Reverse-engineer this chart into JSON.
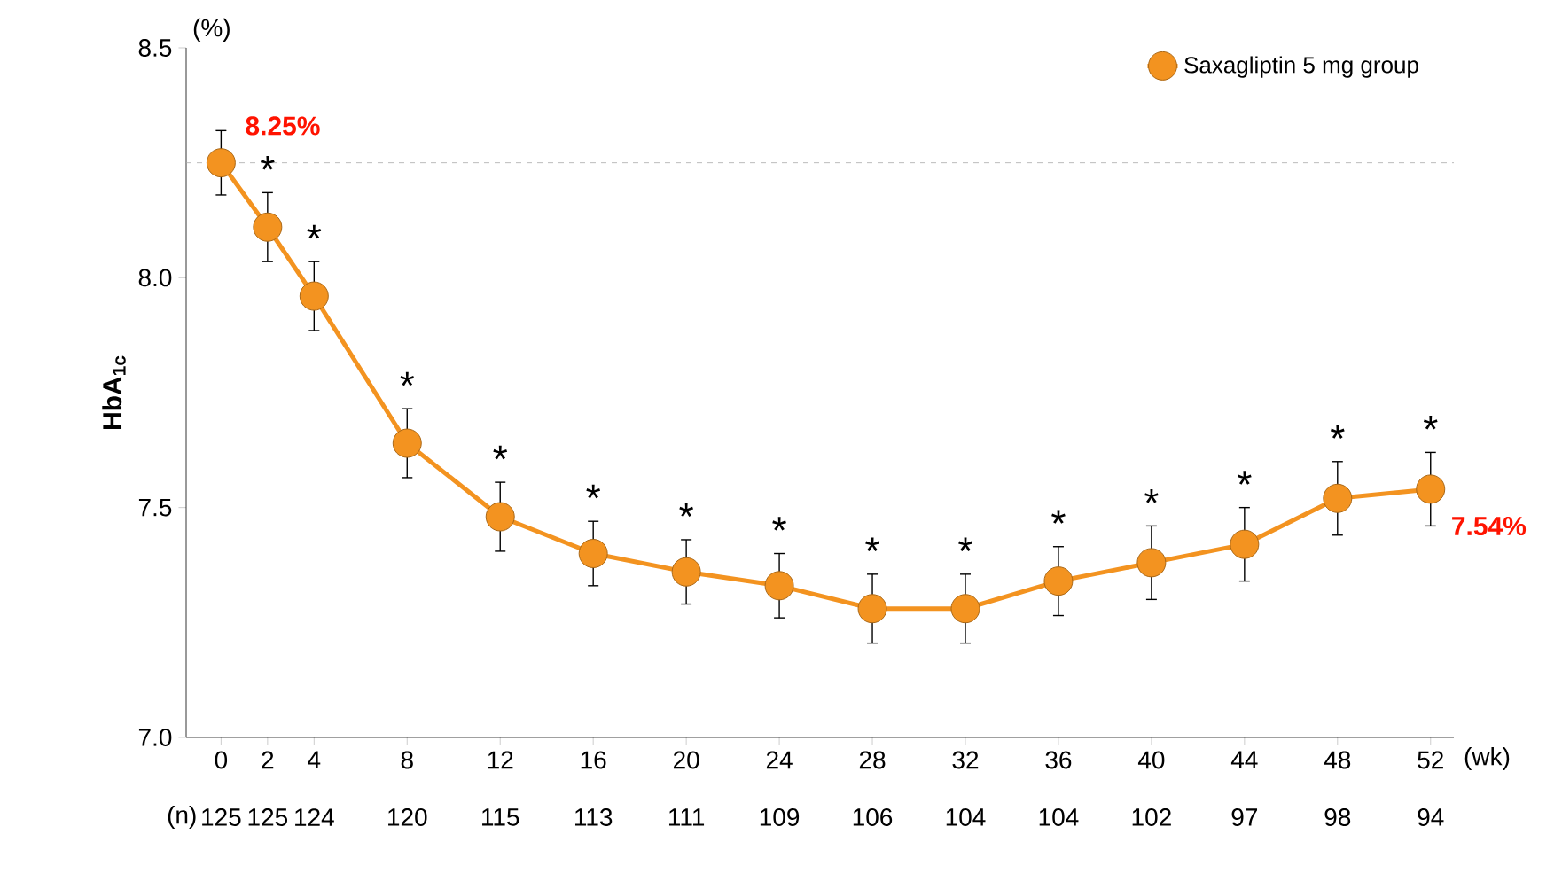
{
  "chart_data": {
    "type": "line",
    "ylabel": "HbA$_{1c}$",
    "xlabel": "(wk)",
    "x": [
      0,
      2,
      4,
      8,
      12,
      16,
      20,
      24,
      28,
      32,
      36,
      40,
      44,
      48,
      52
    ],
    "series": [
      {
        "name": "Saxagliptin 5 mg group",
        "color": "#f39320",
        "values": [
          8.25,
          8.11,
          7.96,
          7.64,
          7.48,
          7.4,
          7.36,
          7.33,
          7.28,
          7.28,
          7.34,
          7.38,
          7.42,
          7.52,
          7.54
        ],
        "errors": [
          0.07,
          0.075,
          0.075,
          0.075,
          0.075,
          0.07,
          0.07,
          0.07,
          0.075,
          0.075,
          0.075,
          0.08,
          0.08,
          0.08,
          0.08
        ],
        "value_labels": [
          "8.25%",
          null,
          null,
          null,
          null,
          null,
          null,
          null,
          null,
          null,
          null,
          null,
          null,
          null,
          "7.54%"
        ]
      }
    ],
    "xlim": [
      -1.5,
      53
    ],
    "ylim": [
      7.0,
      8.5
    ],
    "xticks": [
      0,
      2,
      4,
      8,
      12,
      16,
      20,
      24,
      28,
      32,
      36,
      40,
      44,
      48,
      52
    ],
    "yticks": [
      {
        "value": 7.0,
        "label": "7.0"
      },
      {
        "value": 7.5,
        "label": "7.5"
      },
      {
        "value": 8.0,
        "label": "8.0"
      },
      {
        "value": 8.5,
        "label": "8.5"
      }
    ],
    "ref_lines": [
      {
        "axis": "y",
        "value": 8.25,
        "color": "#aaaaaa",
        "line_style": "dashed"
      }
    ],
    "legend": "top right",
    "marker": "circle",
    "line_style": "solid",
    "annotations": [
      "(%)",
      "(n)",
      "*",
      "*",
      "*",
      "*",
      "*",
      "*",
      "*",
      "*",
      "*",
      "*",
      "*",
      "*",
      "*",
      "*",
      "125",
      "125",
      "124",
      "120",
      "115",
      "113",
      "111",
      "109",
      "106",
      "104",
      "104",
      "102",
      "97",
      "98",
      "94"
    ]
  }
}
